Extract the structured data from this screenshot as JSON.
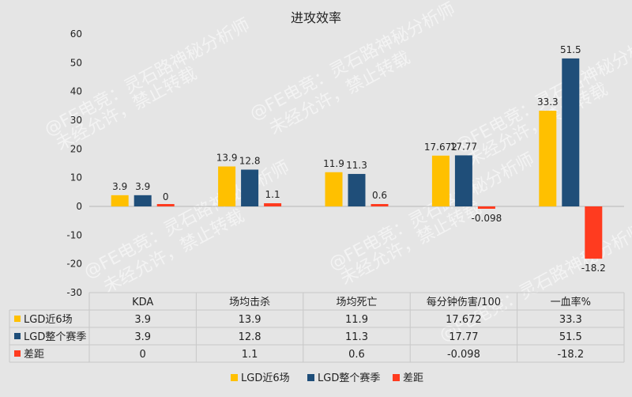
{
  "chart_data": {
    "type": "bar",
    "title": "进攻效率",
    "categories": [
      "KDA",
      "场均击杀",
      "场均死亡",
      "每分钟伤害/100",
      "一血率%"
    ],
    "series": [
      {
        "name": "LGD近6场",
        "color": "#ffc000",
        "values": [
          3.9,
          13.9,
          11.9,
          17.672,
          33.3
        ],
        "labels": [
          "3.9",
          "13.9",
          "11.9",
          "17.672",
          "33.3"
        ]
      },
      {
        "name": "LGD整个赛季",
        "color": "#1f4e79",
        "values": [
          3.9,
          12.8,
          11.3,
          17.77,
          51.5
        ],
        "labels": [
          "3.9",
          "12.8",
          "11.3",
          "17.77",
          "51.5"
        ]
      },
      {
        "name": "差距",
        "color": "#ff3b1f",
        "values": [
          0,
          1.1,
          0.6,
          -0.098,
          -18.2
        ],
        "labels": [
          "0",
          "1.1",
          "0.6",
          "-0.098",
          "-18.2"
        ]
      }
    ],
    "ylim": [
      -30,
      60
    ],
    "yticks": [
      -30,
      -20,
      -10,
      0,
      10,
      20,
      30,
      40,
      50,
      60
    ],
    "grid": false,
    "legend": "bottom",
    "data_table": true
  }
}
